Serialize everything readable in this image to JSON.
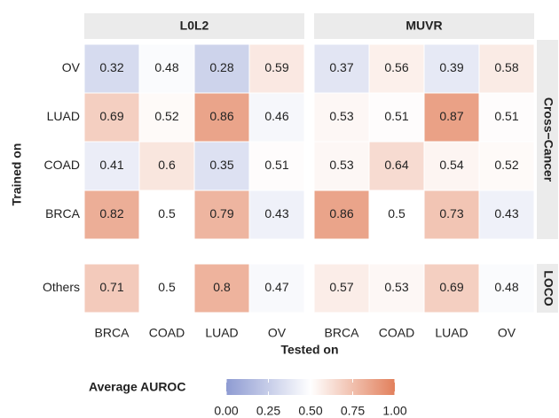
{
  "chart_data": {
    "type": "heatmap",
    "x_label": "Tested on",
    "y_label": "Trained on",
    "column_facets": [
      "L0L2",
      "MUVR"
    ],
    "columns": [
      "BRCA",
      "COAD",
      "LUAD",
      "OV"
    ],
    "row_facets": [
      {
        "label": "Cross−Cancer",
        "rows": [
          "OV",
          "LUAD",
          "COAD",
          "BRCA"
        ]
      },
      {
        "label": "LOCO",
        "rows": [
          "Others"
        ]
      }
    ],
    "values": [
      [
        [
          [
            0.32,
            0.48,
            0.28,
            0.59
          ],
          [
            0.69,
            0.52,
            0.86,
            0.46
          ],
          [
            0.41,
            0.6,
            0.35,
            0.51
          ],
          [
            0.82,
            0.5,
            0.79,
            0.43
          ]
        ],
        [
          [
            0.71,
            0.5,
            0.8,
            0.47
          ]
        ]
      ],
      [
        [
          [
            0.37,
            0.56,
            0.39,
            0.58
          ],
          [
            0.53,
            0.51,
            0.87,
            0.51
          ],
          [
            0.53,
            0.64,
            0.54,
            0.52
          ],
          [
            0.86,
            0.5,
            0.73,
            0.43
          ]
        ],
        [
          [
            0.57,
            0.53,
            0.69,
            0.48
          ]
        ]
      ]
    ],
    "legend": {
      "title": "Average AUROC",
      "colors": [
        "#8e9bd2",
        "#ffffff",
        "#e2805c"
      ],
      "limits": [
        0,
        1
      ],
      "ticks": [
        {
          "value": 0,
          "label": "0.00"
        },
        {
          "value": 0.25,
          "label": "0.25"
        },
        {
          "value": 0.5,
          "label": "0.50"
        },
        {
          "value": 0.75,
          "label": "0.75"
        },
        {
          "value": 1,
          "label": "1.00"
        }
      ]
    }
  }
}
